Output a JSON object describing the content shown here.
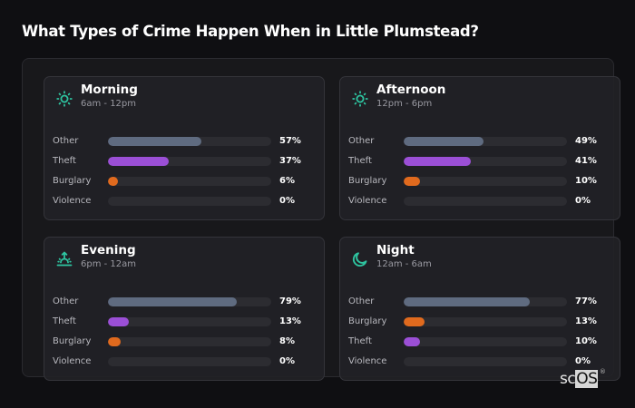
{
  "title": "What Types of Crime Happen When in Little Plumstead?",
  "colors": {
    "accent": "#2ec4a0",
    "Other": "#5f6b80",
    "Theft": "#9b4fd6",
    "Burglary": "#e06a1e",
    "Violence": "#5f6b80",
    "track": "#2c2c31"
  },
  "cards": [
    {
      "name": "Morning",
      "range": "6am - 12pm",
      "icon": "sun-icon",
      "rows": [
        {
          "label": "Other",
          "value": 57,
          "display": "57%"
        },
        {
          "label": "Theft",
          "value": 37,
          "display": "37%"
        },
        {
          "label": "Burglary",
          "value": 6,
          "display": "6%"
        },
        {
          "label": "Violence",
          "value": 0,
          "display": "0%"
        }
      ]
    },
    {
      "name": "Afternoon",
      "range": "12pm - 6pm",
      "icon": "sun-icon",
      "rows": [
        {
          "label": "Other",
          "value": 49,
          "display": "49%"
        },
        {
          "label": "Theft",
          "value": 41,
          "display": "41%"
        },
        {
          "label": "Burglary",
          "value": 10,
          "display": "10%"
        },
        {
          "label": "Violence",
          "value": 0,
          "display": "0%"
        }
      ]
    },
    {
      "name": "Evening",
      "range": "6pm - 12am",
      "icon": "sunset-icon",
      "rows": [
        {
          "label": "Other",
          "value": 79,
          "display": "79%"
        },
        {
          "label": "Theft",
          "value": 13,
          "display": "13%"
        },
        {
          "label": "Burglary",
          "value": 8,
          "display": "8%"
        },
        {
          "label": "Violence",
          "value": 0,
          "display": "0%"
        }
      ]
    },
    {
      "name": "Night",
      "range": "12am - 6am",
      "icon": "moon-icon",
      "rows": [
        {
          "label": "Other",
          "value": 77,
          "display": "77%"
        },
        {
          "label": "Burglary",
          "value": 13,
          "display": "13%"
        },
        {
          "label": "Theft",
          "value": 10,
          "display": "10%"
        },
        {
          "label": "Violence",
          "value": 0,
          "display": "0%"
        }
      ]
    }
  ],
  "watermark": {
    "sc": "sc",
    "os": "OS",
    "reg": "®"
  },
  "chart_data": {
    "type": "bar",
    "orientation": "horizontal",
    "title": "What Types of Crime Happen When in Little Plumstead?",
    "unit": "%",
    "xlim": [
      0,
      100
    ],
    "panels": [
      {
        "title": "Morning",
        "subtitle": "6am - 12pm",
        "categories": [
          "Other",
          "Theft",
          "Burglary",
          "Violence"
        ],
        "values": [
          57,
          37,
          6,
          0
        ]
      },
      {
        "title": "Afternoon",
        "subtitle": "12pm - 6pm",
        "categories": [
          "Other",
          "Theft",
          "Burglary",
          "Violence"
        ],
        "values": [
          49,
          41,
          10,
          0
        ]
      },
      {
        "title": "Evening",
        "subtitle": "6pm - 12am",
        "categories": [
          "Other",
          "Theft",
          "Burglary",
          "Violence"
        ],
        "values": [
          79,
          13,
          8,
          0
        ]
      },
      {
        "title": "Night",
        "subtitle": "12am - 6am",
        "categories": [
          "Other",
          "Burglary",
          "Theft",
          "Violence"
        ],
        "values": [
          77,
          13,
          10,
          0
        ]
      }
    ],
    "grid": false,
    "legend": "none"
  }
}
